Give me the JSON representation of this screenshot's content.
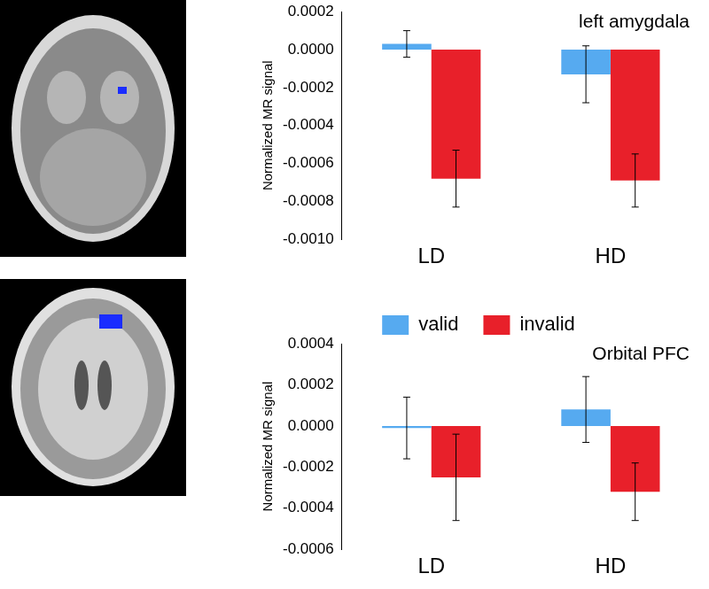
{
  "chart_data": [
    {
      "type": "bar",
      "title": "left amygdala",
      "y_label": "Normalized MR signal",
      "categories": [
        "LD",
        "HD"
      ],
      "series": [
        {
          "name": "valid",
          "color": "#56aaf0",
          "values": [
            3e-05,
            -0.00013
          ],
          "errors": [
            7e-05,
            0.00015
          ]
        },
        {
          "name": "invalid",
          "color": "#e8202a",
          "values": [
            -0.00068,
            -0.00069
          ],
          "errors": [
            0.00015,
            0.00014
          ]
        }
      ],
      "ylim": [
        -0.001,
        0.0002
      ],
      "yticks": [
        0.0002,
        {
          "value": 0,
          "label": "0.0000"
        },
        -0.0002,
        -0.0004,
        -0.0006,
        -0.0008,
        {
          "value": -0.001,
          "label": "-0.0010"
        }
      ],
      "grid": false
    },
    {
      "type": "bar",
      "title": "Orbital PFC",
      "y_label": "Normalized MR signal",
      "categories": [
        "LD",
        "HD"
      ],
      "series": [
        {
          "name": "valid",
          "color": "#56aaf0",
          "values": [
            -1e-05,
            8e-05
          ],
          "errors": [
            0.00015,
            0.00016
          ]
        },
        {
          "name": "invalid",
          "color": "#e8202a",
          "values": [
            -0.00025,
            -0.00032
          ],
          "errors": [
            0.00021,
            0.00014
          ]
        }
      ],
      "ylim": [
        -0.0006,
        0.0004
      ],
      "yticks": [
        0.0004,
        0.0002,
        {
          "value": 0,
          "label": "0.0000"
        },
        -0.0002,
        -0.0004,
        -0.0006
      ],
      "grid": false,
      "legend": "top"
    }
  ]
}
